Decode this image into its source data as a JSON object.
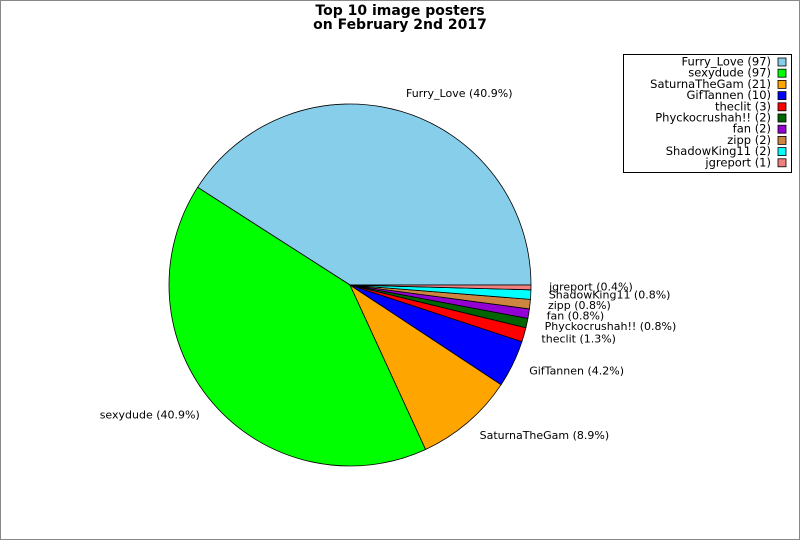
{
  "chart_data": {
    "type": "pie",
    "title": [
      "Top 10 image posters",
      "on February 2nd 2017"
    ],
    "categories": [
      "Furry_Love",
      "sexydude",
      "SaturnaTheGam",
      "GifTannen",
      "theclit",
      "Phyckocrushah!!",
      "fan",
      "zipp",
      "ShadowKing11",
      "jgreport"
    ],
    "values": [
      97,
      97,
      21,
      10,
      3,
      2,
      2,
      2,
      2,
      1
    ],
    "value_labels": [
      "Furry_Love (97)",
      "sexydude (97)",
      "SaturnaTheGam (21)",
      "GifTannen (10)",
      "theclit (3)",
      "Phyckocrushah!! (2)",
      "fan (2)",
      "zipp (2)",
      "ShadowKing11 (2)",
      "jgreport (1)"
    ],
    "percentages": [
      40.9,
      40.9,
      8.9,
      4.2,
      1.3,
      0.8,
      0.8,
      0.8,
      0.8,
      0.4
    ],
    "slice_labels": [
      "Furry_Love (40.9%)",
      "sexydude (40.9%)",
      "SaturnaTheGam (8.9%)",
      "GifTannen (4.2%)",
      "theclit (1.3%)",
      "Phyckocrushah!! (0.8%)",
      "fan (0.8%)",
      "zipp (0.8%)",
      "ShadowKing11 (0.8%)",
      "jgreport (0.4%)"
    ],
    "colors": [
      "#87ceeb",
      "#00ff00",
      "#ffa500",
      "#0000ff",
      "#ff0000",
      "#006400",
      "#9400d3",
      "#cd853f",
      "#00ffff",
      "#f08080"
    ],
    "legend": "upper right"
  }
}
